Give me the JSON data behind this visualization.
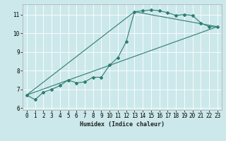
{
  "xlabel": "Humidex (Indice chaleur)",
  "bg_color": "#cce8ea",
  "grid_color": "#ffffff",
  "line_color": "#2e7d6e",
  "xlim": [
    -0.5,
    23.5
  ],
  "ylim": [
    5.9,
    11.55
  ],
  "xticks": [
    0,
    1,
    2,
    3,
    4,
    5,
    6,
    7,
    8,
    9,
    10,
    11,
    12,
    13,
    14,
    15,
    16,
    17,
    18,
    19,
    20,
    21,
    22,
    23
  ],
  "yticks": [
    6,
    7,
    8,
    9,
    10,
    11
  ],
  "series": [
    [
      0,
      6.7
    ],
    [
      1,
      6.45
    ],
    [
      2,
      6.85
    ],
    [
      3,
      7.0
    ],
    [
      4,
      7.2
    ],
    [
      5,
      7.5
    ],
    [
      6,
      7.35
    ],
    [
      7,
      7.4
    ],
    [
      8,
      7.65
    ],
    [
      9,
      7.65
    ],
    [
      10,
      8.3
    ],
    [
      11,
      8.7
    ],
    [
      12,
      9.55
    ],
    [
      13,
      11.15
    ],
    [
      14,
      11.2
    ],
    [
      15,
      11.25
    ],
    [
      16,
      11.2
    ],
    [
      17,
      11.1
    ],
    [
      18,
      10.95
    ],
    [
      19,
      11.0
    ],
    [
      20,
      10.95
    ],
    [
      21,
      10.55
    ],
    [
      22,
      10.35
    ],
    [
      23,
      10.35
    ]
  ],
  "line2": [
    [
      0,
      6.7
    ],
    [
      23,
      10.35
    ]
  ],
  "line3": [
    [
      0,
      6.7
    ],
    [
      13,
      11.15
    ],
    [
      23,
      10.35
    ]
  ],
  "tick_fontsize": 5.5,
  "xlabel_fontsize": 6.0,
  "marker_size": 2.0,
  "line_width": 0.8
}
